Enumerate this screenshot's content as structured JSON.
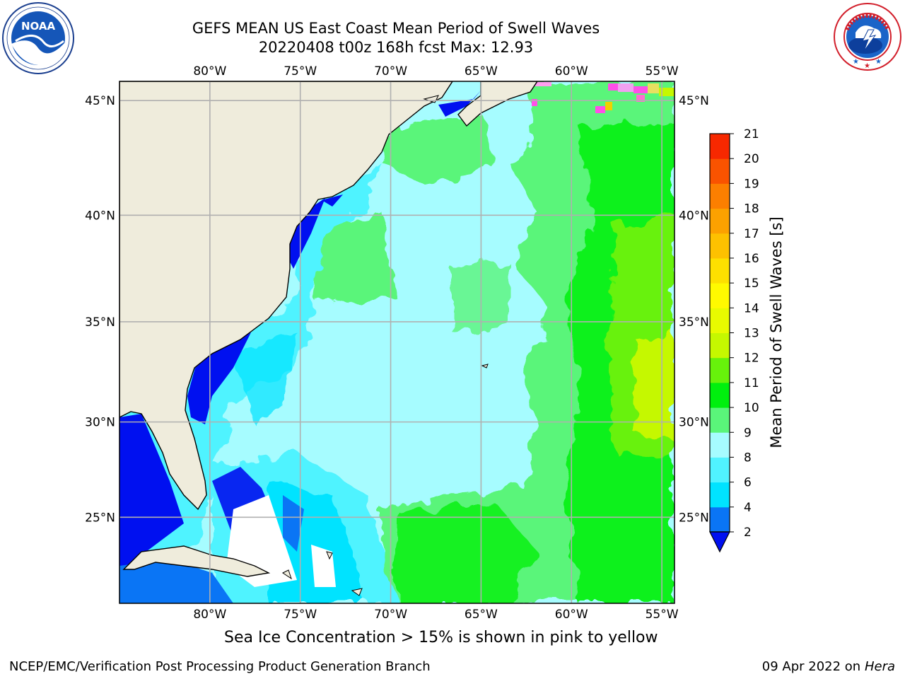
{
  "header": {
    "title_line1": "GEFS MEAN US East Coast Mean Period of Swell Waves",
    "title_line2": "20220408 t00z 168h fcst   Max: 12.93"
  },
  "logos": {
    "noaa": {
      "text": "NOAA",
      "ring_text": "NATIONAL OCEANIC AND ATMOSPHERIC ADMINISTRATION · U.S. DEPARTMENT OF COMMERCE"
    },
    "nws": {
      "ring_text": "NATIONAL WEATHER SERVICE"
    }
  },
  "map": {
    "lon_ticks": [
      "80°W",
      "75°W",
      "70°W",
      "65°W",
      "60°W",
      "55°W"
    ],
    "lat_ticks": [
      "45°N",
      "40°N",
      "35°N",
      "30°N",
      "25°N"
    ],
    "lon_values": [
      -80,
      -75,
      -70,
      -65,
      -60,
      -55
    ],
    "lat_values": [
      45,
      40,
      35,
      30,
      25
    ],
    "lon_range": [
      -85,
      -54.3
    ],
    "lat_range": [
      20.3,
      45.8
    ],
    "land_color": "#efecdc",
    "grid_color": "#b0b0b0"
  },
  "colorbar": {
    "label": "Mean Period of Swell Waves [s]",
    "levels": [
      "2",
      "4",
      "6",
      "8",
      "9",
      "10",
      "11",
      "12",
      "13",
      "14",
      "15",
      "16",
      "17",
      "18",
      "19",
      "20",
      "21"
    ],
    "colors": [
      "#0a75f5",
      "#00e3ff",
      "#50f3ff",
      "#a6fcff",
      "#5af57a",
      "#00f00e",
      "#67f20b",
      "#c5f800",
      "#e8fb00",
      "#fffa00",
      "#fde000",
      "#fdc100",
      "#fca100",
      "#fc7f00",
      "#f95300",
      "#f72800"
    ],
    "under_color": "#0010f0"
  },
  "note": "Sea Ice Concentration > 15% is shown in pink to yellow",
  "footer": {
    "left": "NCEP/EMC/Verification Post Processing Product Generation Branch",
    "date": "09 Apr 2022 on ",
    "host": "Hera"
  }
}
